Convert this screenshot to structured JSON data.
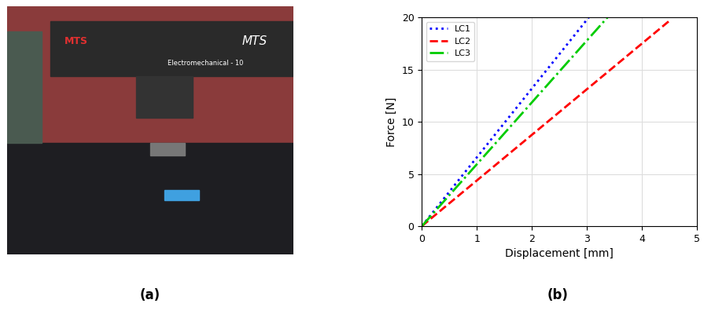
{
  "panel_labels": [
    "(a)",
    "(b)"
  ],
  "photo": {
    "texts": [
      "MTS",
      "MTS",
      "Electromechanical - 10"
    ]
  },
  "chart_data": {
    "type": "line",
    "x_label": "Displacement [mm]",
    "y_label": "Force [N]",
    "series": [
      {
        "name": "LC1",
        "color": "#0000ff",
        "line_style": "dotted",
        "x": [
          0,
          3.03
        ],
        "values": [
          0,
          20
        ]
      },
      {
        "name": "LC2",
        "color": "#ff0000",
        "line_style": "dashed",
        "x": [
          0,
          4.5
        ],
        "values": [
          0,
          19.7
        ]
      },
      {
        "name": "LC3",
        "color": "#00cc00",
        "line_style": "dashdot",
        "x": [
          0,
          3.37
        ],
        "values": [
          0,
          20
        ]
      }
    ],
    "xlim": [
      0,
      5
    ],
    "ylim": [
      0,
      20
    ],
    "xticks": [
      0,
      1,
      2,
      3,
      4,
      5
    ],
    "yticks": [
      0,
      5,
      10,
      15,
      20
    ],
    "grid": true,
    "legend": "upper left"
  }
}
